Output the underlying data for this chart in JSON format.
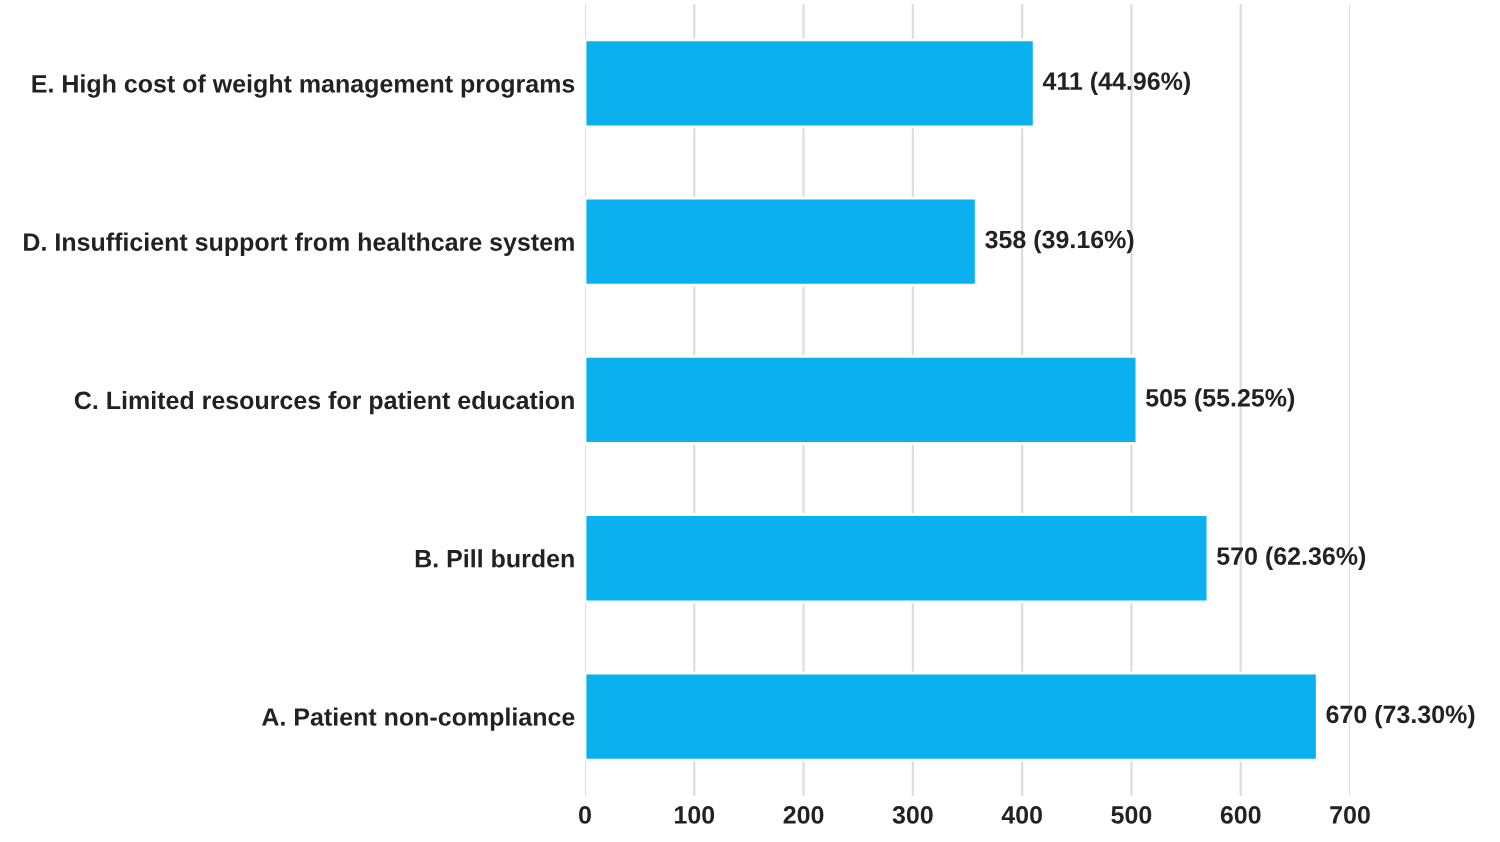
{
  "chart_data": {
    "type": "bar",
    "orientation": "horizontal",
    "categories": [
      "E. High cost of weight management programs",
      "D. Insufficient support from healthcare system",
      "C. Limited resources for patient education",
      "B. Pill burden",
      "A. Patient non-compliance"
    ],
    "values": [
      411,
      358,
      505,
      570,
      670
    ],
    "value_labels": [
      "411 (44.96%)",
      "358 (39.16%)",
      "505 (55.25%)",
      "570 (62.36%)",
      "670 (73.30%)"
    ],
    "color": "#0bb0ee",
    "xlim": [
      0,
      700
    ],
    "xticks": [
      0,
      100,
      200,
      300,
      400,
      500,
      600,
      700
    ],
    "grid": "x",
    "legend": false
  }
}
